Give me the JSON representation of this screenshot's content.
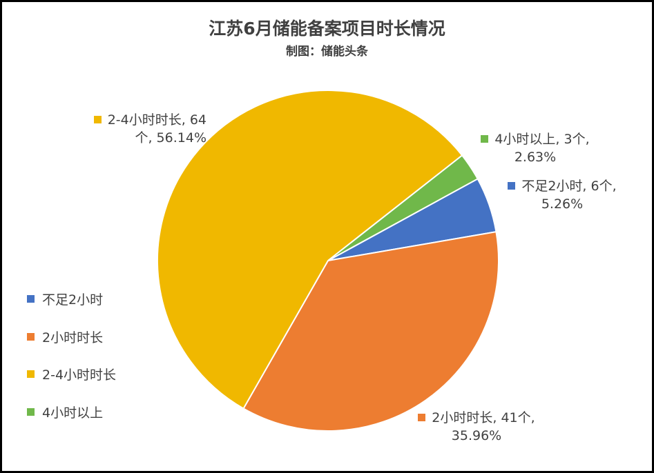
{
  "chart_data": {
    "type": "pie",
    "title": "江苏6月储能备案项目时长情况",
    "subtitle": "制图：储能头条",
    "categories": [
      "不足2小时",
      "2小时时长",
      "2-4小时时长",
      "4小时以上"
    ],
    "values": [
      6,
      41,
      64,
      3
    ],
    "percents": [
      "5.26%",
      "35.96%",
      "56.14%",
      "2.63%"
    ],
    "colors": [
      "#4472C4",
      "#ED7D31",
      "#F0B800",
      "#70B84A"
    ],
    "legend_position": "left",
    "data_labels": [
      {
        "line1": "不足2小时, 6个,",
        "line2": "5.26%"
      },
      {
        "line1": "2小时时长, 41个,",
        "line2": "35.96%"
      },
      {
        "line1": "2-4小时时长, 64",
        "line2": "个, 56.14%"
      },
      {
        "line1": "4小时以上, 3个,",
        "line2": "2.63%"
      }
    ]
  }
}
